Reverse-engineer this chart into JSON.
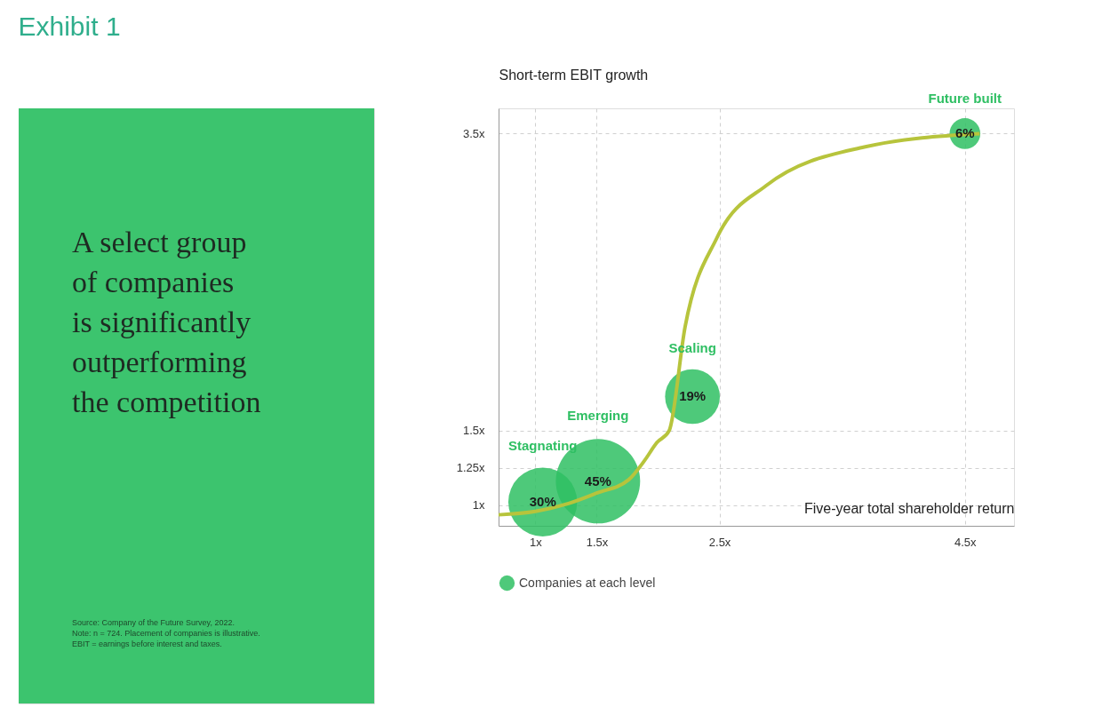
{
  "chart_data": {
    "type": "bubble",
    "title": "Exhibit 1",
    "subtitle": "A select group\nof companies\nis significantly\noutperforming\nthe competition",
    "xlabel": "Five-year total shareholder return",
    "ylabel": "Short-term EBIT growth",
    "xlim": [
      0.7,
      4.9
    ],
    "ylim": [
      0.86,
      3.67
    ],
    "xticks": [
      {
        "value": 1,
        "label": "1x"
      },
      {
        "value": 1.5,
        "label": "1.5x"
      },
      {
        "value": 2.5,
        "label": "2.5x"
      },
      {
        "value": 4.5,
        "label": "4.5x"
      }
    ],
    "yticks": [
      {
        "value": 1,
        "label": "1x"
      },
      {
        "value": 1.25,
        "label": "1.25x"
      },
      {
        "value": 1.5,
        "label": "1.5x"
      },
      {
        "value": 3.5,
        "label": "3.5x"
      }
    ],
    "grid": true,
    "legend": "bottom",
    "series": [
      {
        "name": "Companies at each level",
        "color": "#2fbf63",
        "x": [
          1.06,
          1.51,
          2.28,
          4.5
        ],
        "values": [
          1.02,
          1.16,
          1.73,
          3.5
        ],
        "sizes": [
          30,
          45,
          19,
          6
        ],
        "value_labels": [
          "30%",
          "45%",
          "19%",
          "6%"
        ]
      },
      {
        "type": "line",
        "color": "#b7c43c",
        "marker": "none",
        "x": [
          0.7,
          1,
          1.27,
          1.5,
          1.76,
          1.89,
          1.99,
          2.09,
          2.22,
          2.48,
          2.88,
          3.68,
          4.62
        ],
        "values": [
          0.934,
          0.957,
          1.01,
          1.08,
          1.17,
          1.3,
          1.42,
          1.5,
          2.2,
          2.8,
          3.15,
          3.41,
          3.5
        ]
      }
    ],
    "annotations": [
      "Stagnating",
      "Emerging",
      "Scaling",
      "Future built",
      "Source: Company of the Future Survey, 2022.",
      "Note: n = 724. Placement of companies is illustrative.\nEBIT = earnings before interest and taxes."
    ]
  }
}
